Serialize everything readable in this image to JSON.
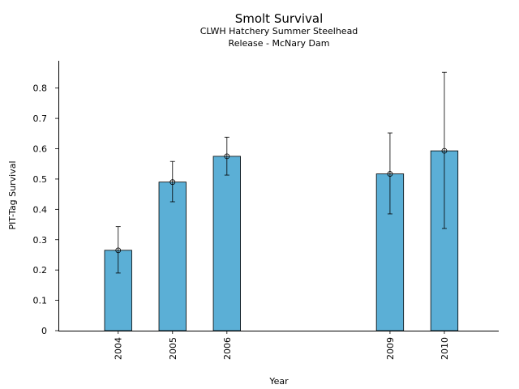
{
  "chart_data": {
    "type": "bar",
    "title": "Smolt Survival",
    "subtitle_lines": [
      "CLWH Hatchery Summer Steelhead",
      "Release - McNary Dam"
    ],
    "xlabel": "Year",
    "ylabel": "PIT-Tag Survival",
    "categories": [
      "2004",
      "2005",
      "2006",
      "2009",
      "2010"
    ],
    "values": [
      0.265,
      0.49,
      0.575,
      0.517,
      0.593
    ],
    "error_low": [
      0.19,
      0.425,
      0.513,
      0.385,
      0.337
    ],
    "error_high": [
      0.343,
      0.558,
      0.638,
      0.652,
      0.852
    ],
    "yticks": [
      0,
      0.1,
      0.2,
      0.3,
      0.4,
      0.5,
      0.6,
      0.7,
      0.8
    ],
    "ytick_labels": [
      "0",
      "0.1",
      "0.2",
      "0.3",
      "0.4",
      "0.5",
      "0.6",
      "0.7",
      "0.8"
    ],
    "ylim": [
      0,
      0.89
    ],
    "xlim": [
      2002.9,
      2011
    ],
    "grid": false,
    "bar_color": "#5bafd6"
  }
}
